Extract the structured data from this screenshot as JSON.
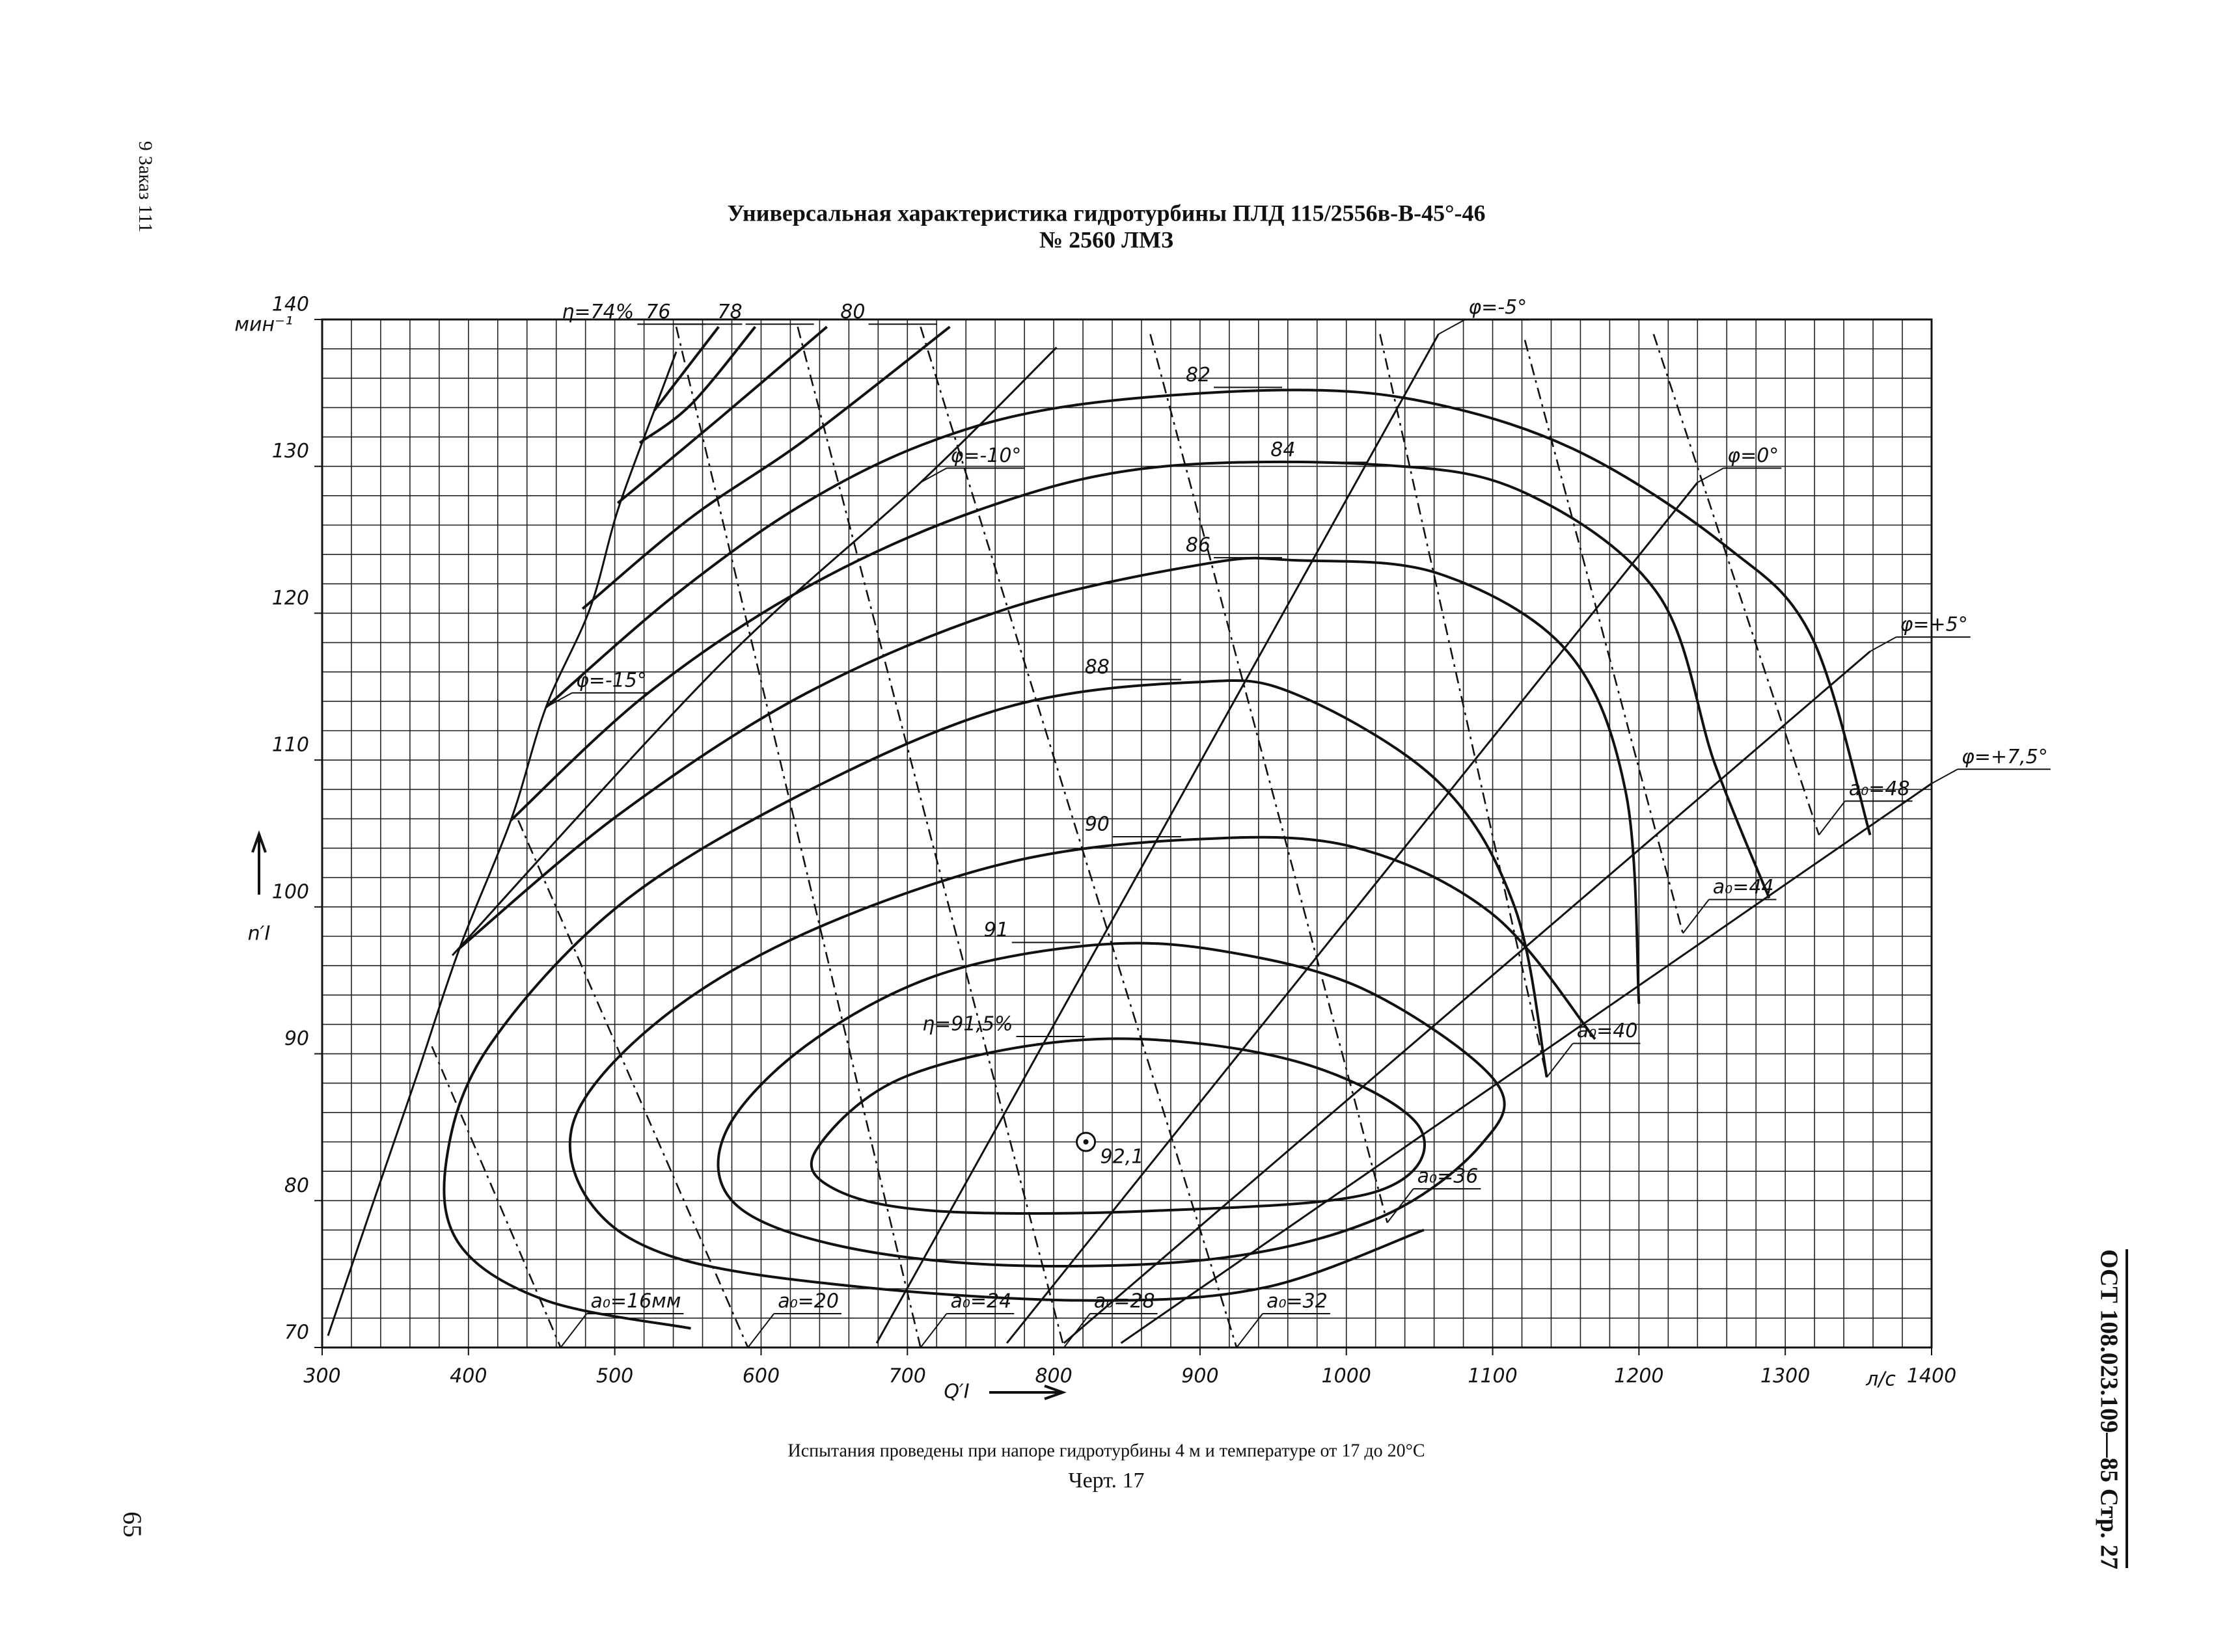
{
  "page": {
    "order_stamp": "9 Заказ 111",
    "page_number": "65",
    "side_code": "ОСТ 108.023.109—85 Стр. 27"
  },
  "chart_data": {
    "type": "line",
    "title": "Универсальная характеристика гидротурбины ПЛД 115/2556в-В-45°-46",
    "subtitle": "№ 2560 ЛМЗ",
    "ylabel": "n′I",
    "y_unit": "мин⁻¹",
    "xlabel": "Q′I",
    "x_unit": "л/с",
    "note": "Испытания проведены при напоре гидротурбины 4 м и температуре от 17 до 20°С",
    "caption": "Черт. 17",
    "xlim": [
      300,
      1400
    ],
    "ylim": [
      70,
      140
    ],
    "xticks": [
      300,
      400,
      500,
      600,
      700,
      800,
      900,
      1000,
      1100,
      1200,
      1300,
      1400
    ],
    "yticks": [
      70,
      80,
      90,
      100,
      110,
      120,
      130,
      140
    ],
    "xgrid": [
      300,
      320,
      340,
      360,
      380,
      400,
      420,
      440,
      460,
      480,
      500,
      520,
      540,
      560,
      580,
      600,
      620,
      640,
      660,
      680,
      700,
      720,
      740,
      760,
      780,
      800,
      820,
      840,
      860,
      880,
      900,
      920,
      940,
      960,
      980,
      1000,
      1020,
      1040,
      1060,
      1080,
      1100,
      1120,
      1140,
      1160,
      1180,
      1200,
      1220,
      1240,
      1260,
      1280,
      1300,
      1320,
      1340,
      1360,
      1380,
      1400
    ],
    "ygrid": [
      70,
      72,
      74,
      76,
      78,
      80,
      82,
      84,
      86,
      88,
      90,
      92,
      94,
      96,
      98,
      100,
      102,
      104,
      106,
      108,
      110,
      112,
      114,
      116,
      118,
      120,
      122,
      124,
      126,
      128,
      130,
      132,
      134,
      136,
      138,
      140
    ],
    "color": "#111111",
    "efficiency": [
      {
        "name": "η=74%",
        "x": [
          527,
          571
        ],
        "values": [
          133.8,
          139.5
        ]
      },
      {
        "name": "76",
        "x": [
          517,
          552,
          596
        ],
        "values": [
          131.6,
          134.2,
          139.5
        ]
      },
      {
        "name": "78",
        "x": [
          502,
          572,
          645
        ],
        "values": [
          127.5,
          133.3,
          139.5
        ]
      },
      {
        "name": "80",
        "x": [
          478,
          552,
          630,
          729
        ],
        "values": [
          120.3,
          126.5,
          131.8,
          139.5
        ]
      },
      {
        "name": "82",
        "x": [
          453,
          542,
          630,
          719,
          817,
          965,
          1063,
          1161,
          1259,
          1318,
          1358
        ],
        "values": [
          113.6,
          121.3,
          127.5,
          131.8,
          134.2,
          135.2,
          134.2,
          130.9,
          124.6,
          118.4,
          104.9
        ]
      },
      {
        "name": "84",
        "x": [
          429,
          522,
          630,
          748,
          866,
          1023,
          1122,
          1213,
          1252,
          1289
        ],
        "values": [
          105.9,
          114.5,
          121.7,
          127.0,
          129.9,
          130.1,
          128.2,
          121.3,
          109.7,
          100.6
        ]
      },
      {
        "name": "86",
        "x": [
          394,
          503,
          630,
          768,
          906,
          965,
          1063,
          1151,
          1191,
          1200
        ],
        "values": [
          97.2,
          106.3,
          114.5,
          120.3,
          123.4,
          123.6,
          122.7,
          117.4,
          107.8,
          93.4
        ]
      },
      {
        "name": "88",
        "x": [
          1137,
          1115,
          1063,
          965,
          896,
          768,
          630,
          503,
          414,
          385,
          394,
          453,
          552
        ],
        "values": [
          88.4,
          100.0,
          108.5,
          114.5,
          115.3,
          113.6,
          107.8,
          100.1,
          90.5,
          82.8,
          77.0,
          73.2,
          71.3
        ]
      },
      {
        "name": "90",
        "x": [
          1170,
          1100,
          1004,
          896,
          768,
          630,
          532,
          473,
          483,
          542,
          670,
          827,
          945,
          1053
        ],
        "values": [
          91.0,
          99.5,
          104.1,
          104.6,
          103.0,
          98.2,
          92.4,
          85.7,
          79.9,
          76.1,
          74.1,
          73.2,
          74.1,
          78.0
        ]
      },
      {
        "name": "91",
        "closed": true,
        "x": [
          1102,
          1014,
          915,
          827,
          719,
          630,
          576,
          581,
          650,
          768,
          915,
          1024,
          1092
        ],
        "values": [
          88.1,
          94.3,
          97.0,
          97.4,
          95.3,
          90.5,
          84.7,
          79.9,
          77.0,
          75.6,
          76.1,
          78.9,
          83.8
        ]
      },
      {
        "name": "η=91,5%",
        "closed": true,
        "x": [
          638,
          700,
          830,
          965,
          1050,
          1020,
          866,
          719,
          650
        ],
        "values": [
          83.5,
          88.5,
          91.0,
          89.5,
          85.0,
          80.6,
          79.3,
          79.3,
          80.8
        ]
      }
    ],
    "blade_angle": [
      {
        "name": "φ=-15°",
        "x": [
          304,
          335,
          365,
          394,
          429,
          453,
          483,
          502,
          527,
          542
        ],
        "values": [
          70.8,
          79.9,
          88.6,
          97.2,
          105.9,
          113.6,
          120.3,
          127.0,
          133.8,
          137.8
        ]
      },
      {
        "name": "φ=-10°",
        "x": [
          389,
          571,
          709,
          802
        ],
        "values": [
          96.7,
          116.4,
          128.9,
          138.1
        ]
      },
      {
        "name": "φ=-5°",
        "x": [
          679,
          1063
        ],
        "values": [
          70.3,
          139.0
        ]
      },
      {
        "name": "φ=0°",
        "x": [
          768,
          1240
        ],
        "values": [
          70.3,
          128.9
        ]
      },
      {
        "name": "φ=+5°",
        "x": [
          807,
          1358
        ],
        "values": [
          70.3,
          117.4
        ]
      },
      {
        "name": "φ=+7,5°",
        "x": [
          846,
          1400
        ],
        "values": [
          70.3,
          108.4
        ]
      }
    ],
    "gate_opening": [
      {
        "name": "a₀=16мм",
        "x": [
          375,
          463
        ],
        "values": [
          90.5,
          70
        ]
      },
      {
        "name": "a₀=20",
        "x": [
          434,
          591
        ],
        "values": [
          105.9,
          70
        ]
      },
      {
        "name": "a₀=24",
        "x": [
          542,
          709
        ],
        "values": [
          139.5,
          70
        ]
      },
      {
        "name": "a₀=28",
        "x": [
          625,
          807
        ],
        "values": [
          139.5,
          70
        ]
      },
      {
        "name": "a₀=32",
        "x": [
          709,
          925
        ],
        "values": [
          139.5,
          70
        ]
      },
      {
        "name": "a₀=36",
        "x": [
          866,
          1028
        ],
        "values": [
          139.0,
          78.5
        ]
      },
      {
        "name": "a₀=40",
        "x": [
          1023,
          1137
        ],
        "values": [
          139.0,
          88.4
        ]
      },
      {
        "name": "a₀=44",
        "x": [
          1122,
          1230
        ],
        "values": [
          138.6,
          98.2
        ]
      },
      {
        "name": "a₀=48",
        "x": [
          1210,
          1323
        ],
        "values": [
          139.0,
          104.9
        ]
      }
    ],
    "optimum": {
      "x": 822,
      "y": 84.0,
      "label": "92,1"
    }
  }
}
